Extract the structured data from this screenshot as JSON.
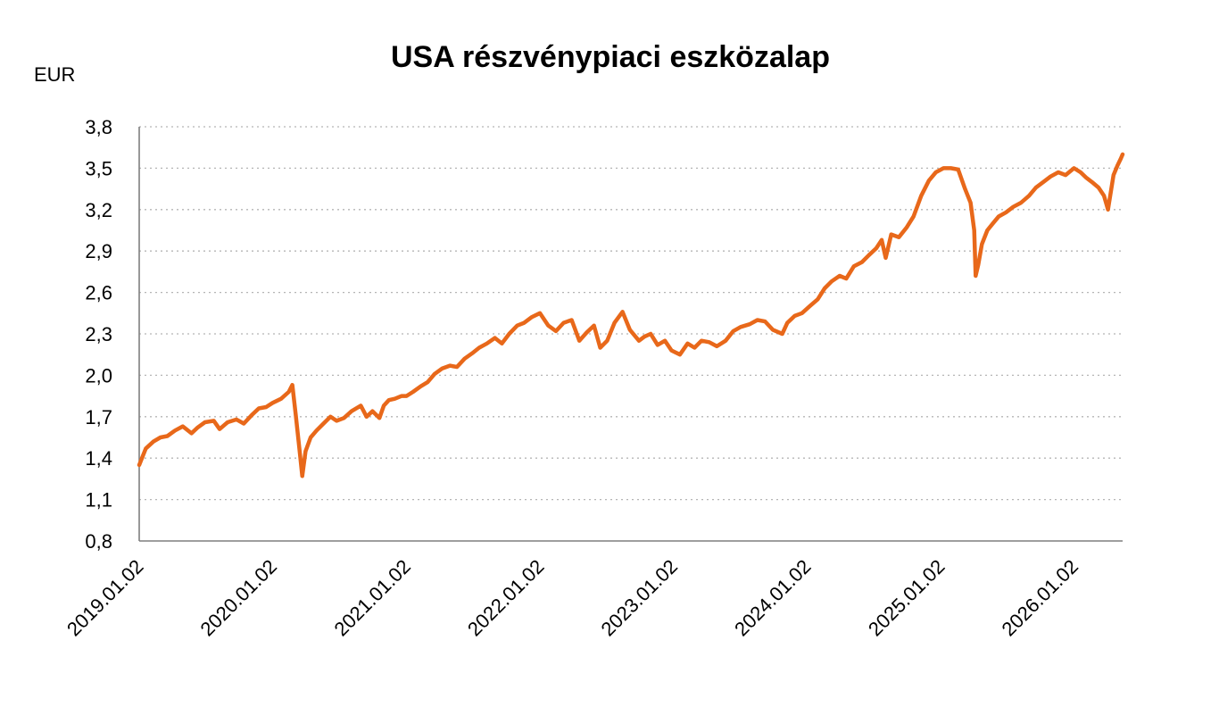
{
  "chart_data": {
    "type": "line",
    "title": "USA részvénypiaci eszközalap",
    "ylabel": "EUR",
    "xlabel": "",
    "ylim": [
      0.8,
      3.8
    ],
    "xlim": [
      "2019.01.02",
      "2026.05.15"
    ],
    "yticks": [
      "3,8",
      "3,5",
      "3,2",
      "2,9",
      "2,6",
      "2,3",
      "2,0",
      "1,7",
      "1,4",
      "1,1",
      "0,8"
    ],
    "ytick_values": [
      3.8,
      3.5,
      3.2,
      2.9,
      2.6,
      2.3,
      2.0,
      1.7,
      1.4,
      1.1,
      0.8
    ],
    "xticks": [
      "2019.01.02",
      "2020.01.02",
      "2021.01.02",
      "2022.01.02",
      "2023.01.02",
      "2024.01.02",
      "2025.01.02",
      "2026.01.02"
    ],
    "grid": true,
    "line_color": "#E8681A",
    "series": [
      {
        "x": [
          "2019.01.02",
          "2019.01.20",
          "2019.02.10",
          "2019.03.01",
          "2019.03.20",
          "2019.04.10",
          "2019.05.01",
          "2019.05.25",
          "2019.06.10",
          "2019.07.01",
          "2019.07.25",
          "2019.08.10",
          "2019.09.01",
          "2019.09.25",
          "2019.10.15",
          "2019.11.05",
          "2019.11.25",
          "2019.12.15",
          "2020.01.02",
          "2020.01.25",
          "2020.02.15",
          "2020.02.25",
          "2020.03.05",
          "2020.03.16",
          "2020.03.23",
          "2020.04.01",
          "2020.04.15",
          "2020.05.01",
          "2020.05.20",
          "2020.06.08",
          "2020.06.25",
          "2020.07.15",
          "2020.08.05",
          "2020.08.30",
          "2020.09.15",
          "2020.10.01",
          "2020.10.20",
          "2020.11.01",
          "2020.11.15",
          "2020.12.01",
          "2020.12.20",
          "2021.01.02",
          "2021.01.20",
          "2021.02.10",
          "2021.03.01",
          "2021.03.20",
          "2021.04.10",
          "2021.05.01",
          "2021.05.20",
          "2021.06.10",
          "2021.07.01",
          "2021.07.20",
          "2021.08.10",
          "2021.09.01",
          "2021.09.20",
          "2021.10.10",
          "2021.11.01",
          "2021.11.20",
          "2021.12.10",
          "2022.01.02",
          "2022.01.25",
          "2022.02.15",
          "2022.03.08",
          "2022.03.30",
          "2022.04.20",
          "2022.05.10",
          "2022.05.30",
          "2022.06.16",
          "2022.07.05",
          "2022.07.25",
          "2022.08.16",
          "2022.09.05",
          "2022.09.30",
          "2022.10.15",
          "2022.11.01",
          "2022.11.20",
          "2022.12.10",
          "2022.12.28",
          "2023.01.20",
          "2023.02.10",
          "2023.03.01",
          "2023.03.20",
          "2023.04.10",
          "2023.05.01",
          "2023.05.25",
          "2023.06.15",
          "2023.07.05",
          "2023.07.30",
          "2023.08.20",
          "2023.09.10",
          "2023.10.01",
          "2023.10.27",
          "2023.11.10",
          "2023.11.30",
          "2023.12.20",
          "2024.01.10",
          "2024.02.01",
          "2024.02.20",
          "2024.03.10",
          "2024.04.01",
          "2024.04.19",
          "2024.05.10",
          "2024.06.01",
          "2024.06.20",
          "2024.07.10",
          "2024.07.25",
          "2024.08.05",
          "2024.08.20",
          "2024.09.10",
          "2024.10.01",
          "2024.10.20",
          "2024.11.10",
          "2024.12.01",
          "2024.12.20",
          "2025.01.10",
          "2025.01.30",
          "2025.02.19",
          "2025.03.10",
          "2025.03.25",
          "2025.04.04",
          "2025.04.08",
          "2025.04.15",
          "2025.04.25",
          "2025.05.10",
          "2025.05.25",
          "2025.06.10",
          "2025.06.30",
          "2025.07.20",
          "2025.08.10",
          "2025.09.01",
          "2025.09.20",
          "2025.10.10",
          "2025.10.30",
          "2025.11.20",
          "2025.12.10",
          "2026.01.02",
          "2026.01.20",
          "2026.02.05",
          "2026.02.20",
          "2026.03.10",
          "2026.03.25",
          "2026.04.05",
          "2026.04.20",
          "2026.05.01",
          "2026.05.10",
          "2026.05.15"
        ],
        "y": [
          1.35,
          1.47,
          1.52,
          1.55,
          1.56,
          1.6,
          1.63,
          1.58,
          1.62,
          1.66,
          1.67,
          1.61,
          1.66,
          1.68,
          1.65,
          1.71,
          1.76,
          1.77,
          1.8,
          1.83,
          1.88,
          1.93,
          1.72,
          1.45,
          1.27,
          1.45,
          1.55,
          1.6,
          1.65,
          1.7,
          1.67,
          1.69,
          1.74,
          1.78,
          1.7,
          1.74,
          1.69,
          1.78,
          1.82,
          1.83,
          1.85,
          1.85,
          1.88,
          1.92,
          1.95,
          2.01,
          2.05,
          2.07,
          2.06,
          2.12,
          2.16,
          2.2,
          2.23,
          2.27,
          2.23,
          2.3,
          2.36,
          2.38,
          2.42,
          2.45,
          2.36,
          2.32,
          2.38,
          2.4,
          2.25,
          2.31,
          2.36,
          2.2,
          2.25,
          2.38,
          2.46,
          2.33,
          2.25,
          2.28,
          2.3,
          2.22,
          2.25,
          2.18,
          2.15,
          2.23,
          2.2,
          2.25,
          2.24,
          2.21,
          2.25,
          2.32,
          2.35,
          2.37,
          2.4,
          2.39,
          2.33,
          2.3,
          2.38,
          2.43,
          2.45,
          2.5,
          2.55,
          2.63,
          2.68,
          2.72,
          2.7,
          2.79,
          2.82,
          2.87,
          2.92,
          2.98,
          2.85,
          3.02,
          3.0,
          3.07,
          3.15,
          3.3,
          3.41,
          3.47,
          3.5,
          3.5,
          3.49,
          3.35,
          3.25,
          3.05,
          2.72,
          2.8,
          2.95,
          3.05,
          3.1,
          3.15,
          3.18,
          3.22,
          3.25,
          3.3,
          3.36,
          3.4,
          3.44,
          3.47,
          3.45,
          3.5,
          3.47,
          3.43,
          3.4,
          3.36,
          3.3,
          3.2,
          3.45,
          3.52,
          3.57,
          3.6
        ]
      }
    ]
  }
}
